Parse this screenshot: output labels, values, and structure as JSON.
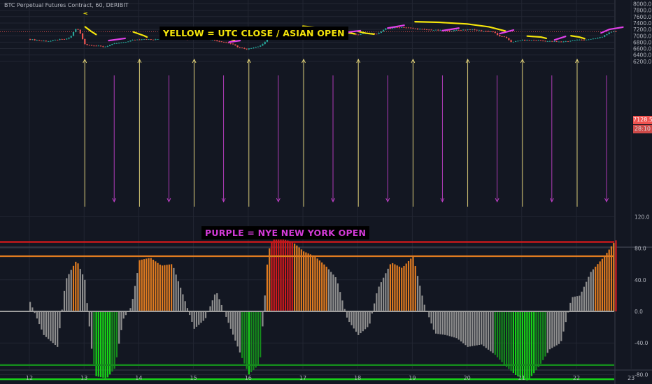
{
  "symbol_title": "BTC Perpetual Futures Contract, 60, DERIBIT",
  "annotations": {
    "yellow": "YELLOW = UTC CLOSE / ASIAN OPEN",
    "purple": "PURPLE = NYE  NEW YORK OPEN"
  },
  "price_tag": {
    "price": "7128.5",
    "countdown": "28:10"
  },
  "chart_data": [
    {
      "type": "candlestick",
      "symbol": "BTC Perpetual Futures Contract",
      "interval": "60",
      "exchange": "DERIBIT",
      "x_tick_labels": [
        "12",
        "13",
        "14",
        "15",
        "16",
        "17",
        "18",
        "19",
        "20",
        "21",
        "22",
        "23"
      ],
      "y_tick_labels": [
        "6200.0",
        "6400.0",
        "6600.0",
        "6800.0",
        "7000.0",
        "7200.0",
        "7400.0",
        "7600.0",
        "7800.0",
        "8000.0"
      ],
      "ylim": [
        6150,
        8060
      ],
      "last_price": 7128.5,
      "price_path": [
        [
          12.0,
          6900
        ],
        [
          12.2,
          6850
        ],
        [
          12.4,
          6830
        ],
        [
          12.55,
          6880
        ],
        [
          12.7,
          6890
        ],
        [
          12.8,
          7000
        ],
        [
          12.85,
          7180
        ],
        [
          12.9,
          7230
        ],
        [
          12.95,
          7100
        ],
        [
          13.0,
          6900
        ],
        [
          13.05,
          6720
        ],
        [
          13.2,
          6700
        ],
        [
          13.4,
          6650
        ],
        [
          13.5,
          6710
        ],
        [
          13.6,
          6760
        ],
        [
          13.75,
          6790
        ],
        [
          13.9,
          6860
        ],
        [
          14.1,
          6900
        ],
        [
          14.3,
          6870
        ],
        [
          14.5,
          6930
        ],
        [
          14.7,
          6960
        ],
        [
          14.9,
          6880
        ],
        [
          15.1,
          6940
        ],
        [
          15.3,
          6900
        ],
        [
          15.5,
          6830
        ],
        [
          15.7,
          6760
        ],
        [
          15.85,
          6640
        ],
        [
          16.0,
          6570
        ],
        [
          16.1,
          6630
        ],
        [
          16.25,
          6680
        ],
        [
          16.35,
          6850
        ],
        [
          16.45,
          6990
        ],
        [
          16.55,
          7060
        ],
        [
          16.7,
          7020
        ],
        [
          16.85,
          7080
        ],
        [
          17.0,
          7130
        ],
        [
          17.2,
          7080
        ],
        [
          17.4,
          7090
        ],
        [
          17.5,
          7060
        ],
        [
          17.7,
          7090
        ],
        [
          17.9,
          7080
        ],
        [
          18.0,
          7030
        ],
        [
          18.2,
          7080
        ],
        [
          18.4,
          7070
        ],
        [
          18.55,
          7230
        ],
        [
          18.7,
          7250
        ],
        [
          18.85,
          7270
        ],
        [
          19.05,
          7230
        ],
        [
          19.2,
          7200
        ],
        [
          19.5,
          7170
        ],
        [
          19.7,
          7150
        ],
        [
          19.9,
          7180
        ],
        [
          20.1,
          7200
        ],
        [
          20.3,
          7150
        ],
        [
          20.5,
          7130
        ],
        [
          20.6,
          7000
        ],
        [
          20.75,
          6930
        ],
        [
          20.85,
          6790
        ],
        [
          21.0,
          6860
        ],
        [
          21.2,
          6860
        ],
        [
          21.35,
          6850
        ],
        [
          21.5,
          6830
        ],
        [
          21.7,
          6810
        ],
        [
          21.85,
          6830
        ],
        [
          22.05,
          6870
        ],
        [
          22.2,
          6880
        ],
        [
          22.35,
          6900
        ],
        [
          22.5,
          6970
        ],
        [
          22.6,
          7080
        ],
        [
          22.7,
          7128.5
        ]
      ]
    },
    {
      "type": "bar",
      "name": "oscillator",
      "y_tick_labels": [
        "120.0",
        "80.0",
        "40.0",
        "0.0",
        "-40.0",
        "-80.0"
      ],
      "ylim": [
        -108,
        128
      ],
      "reference_lines": [
        88,
        70,
        0,
        -68,
        -86
      ],
      "x": [
        12.0,
        12.25,
        12.5,
        12.65,
        12.85,
        13.0,
        13.12,
        13.2,
        13.4,
        13.55,
        13.7,
        13.85,
        14.0,
        14.2,
        14.4,
        14.6,
        14.8,
        15.0,
        15.2,
        15.4,
        15.6,
        15.85,
        16.0,
        16.2,
        16.35,
        16.45,
        16.6,
        16.8,
        17.0,
        17.2,
        17.4,
        17.6,
        17.8,
        18.0,
        18.2,
        18.35,
        18.6,
        18.8,
        19.0,
        19.2,
        19.4,
        19.6,
        19.8,
        20.0,
        20.25,
        20.5,
        20.7,
        20.9,
        21.1,
        21.3,
        21.5,
        21.7,
        21.9,
        22.05,
        22.25,
        22.5,
        22.7,
        22.8
      ],
      "values": [
        12,
        -30,
        -45,
        40,
        65,
        40,
        -45,
        -82,
        -85,
        -72,
        -10,
        6,
        65,
        68,
        58,
        60,
        20,
        -22,
        -10,
        26,
        -10,
        -55,
        -80,
        -66,
        75,
        95,
        92,
        88,
        76,
        70,
        58,
        42,
        -10,
        -30,
        -18,
        28,
        62,
        55,
        70,
        10,
        -28,
        -30,
        -34,
        -45,
        -42,
        -55,
        -70,
        -82,
        -88,
        -70,
        -48,
        -40,
        18,
        20,
        50,
        70,
        90,
        90
      ]
    }
  ]
}
